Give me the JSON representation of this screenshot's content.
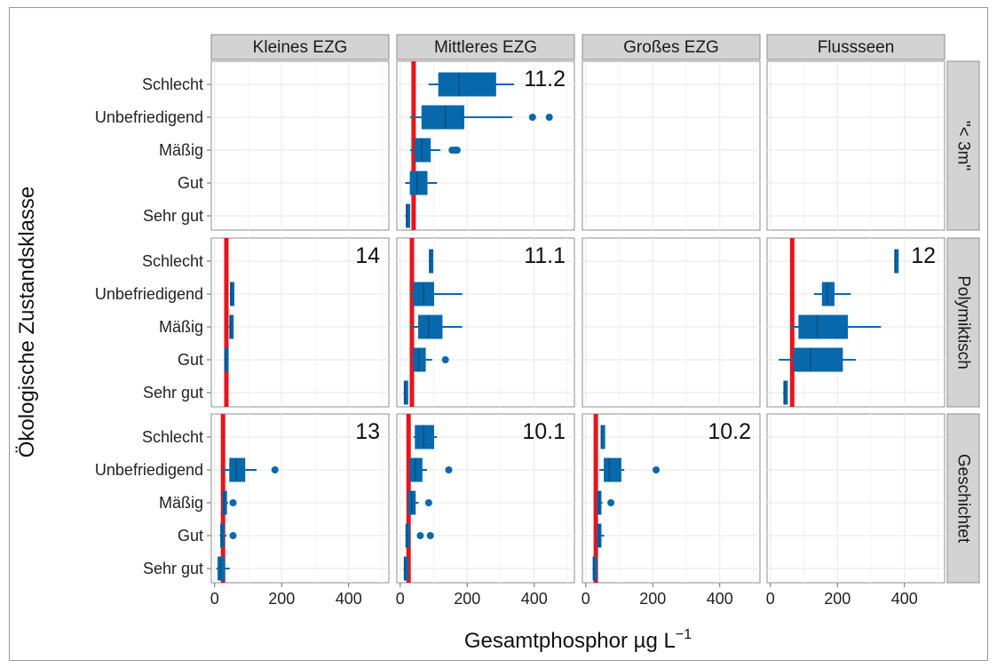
{
  "chart_data": {
    "type": "boxplot",
    "xlabel": "Gesamtphosphor µg L",
    "xlabel_superscript": "−1",
    "ylabel": "Ökologische Zustandsklasse",
    "xlim": [
      -10,
      520
    ],
    "xticks": [
      0,
      200,
      400
    ],
    "categories": [
      "Schlecht",
      "Unbefriedigend",
      "Mäßig",
      "Gut",
      "Sehr gut"
    ],
    "columns": [
      "Kleines EZG",
      "Mittleres EZG",
      "Großes EZG",
      "Flussseen"
    ],
    "rows": [
      "\"< 3m\"",
      "Polymiktisch",
      "Geschichtet"
    ],
    "grid": true,
    "colors": {
      "box": "#0868ac",
      "threshold": "#e8141a",
      "strip": "#d3d3d3",
      "grid": "#ececec"
    },
    "panels": [
      {
        "row": 0,
        "col": 1,
        "label": "11.2",
        "threshold": 40,
        "boxes": {
          "Schlecht": [
            85,
            115,
            175,
            285,
            340,
            []
          ],
          "Unbefriedigend": [
            30,
            65,
            135,
            190,
            335,
            [
              395,
              445
            ]
          ],
          "Mäßig": [
            30,
            45,
            65,
            90,
            120,
            [
              155,
              165,
              170
            ]
          ],
          "Gut": [
            15,
            30,
            50,
            80,
            110,
            []
          ],
          "Sehr gut": [
            15,
            18,
            20,
            25,
            28,
            []
          ]
        }
      },
      {
        "row": 1,
        "col": 0,
        "label": "14",
        "threshold": 35,
        "boxes": {
          "Unbefriedigend": [
            45,
            47,
            50,
            53,
            55,
            []
          ],
          "Mäßig": [
            42,
            45,
            48,
            51,
            54,
            []
          ],
          "Gut": [
            28,
            30,
            33,
            35,
            37,
            []
          ]
        }
      },
      {
        "row": 1,
        "col": 1,
        "label": "11.1",
        "threshold": 35,
        "boxes": {
          "Schlecht": [
            85,
            87,
            90,
            93,
            96,
            []
          ],
          "Unbefriedigend": [
            30,
            40,
            70,
            100,
            185,
            []
          ],
          "Mäßig": [
            30,
            55,
            85,
            125,
            185,
            []
          ],
          "Gut": [
            30,
            40,
            55,
            75,
            95,
            [
              135
            ]
          ],
          "Sehr gut": [
            10,
            12,
            14,
            16,
            18,
            []
          ]
        }
      },
      {
        "row": 1,
        "col": 3,
        "label": "12",
        "threshold": 65,
        "boxes": {
          "Schlecht": [
            370,
            371,
            373,
            375,
            377,
            []
          ],
          "Unbefriedigend": [
            130,
            155,
            170,
            190,
            240,
            []
          ],
          "Mäßig": [
            60,
            85,
            140,
            230,
            330,
            []
          ],
          "Gut": [
            25,
            70,
            120,
            215,
            255,
            []
          ],
          "Sehr gut": [
            38,
            40,
            42,
            44,
            46,
            []
          ]
        }
      },
      {
        "row": 2,
        "col": 0,
        "label": "13",
        "threshold": 25,
        "boxes": {
          "Unbefriedigend": [
            20,
            45,
            65,
            90,
            125,
            [
              180
            ]
          ],
          "Mäßig": [
            20,
            25,
            28,
            32,
            40,
            [
              55
            ]
          ],
          "Gut": [
            15,
            18,
            22,
            26,
            35,
            [
              55
            ]
          ],
          "Sehr gut": [
            5,
            10,
            18,
            30,
            45,
            []
          ]
        }
      },
      {
        "row": 2,
        "col": 1,
        "label": "10.1",
        "threshold": 25,
        "boxes": {
          "Schlecht": [
            40,
            45,
            70,
            100,
            110,
            []
          ],
          "Unbefriedigend": [
            25,
            30,
            45,
            65,
            80,
            [
              145
            ]
          ],
          "Mäßig": [
            20,
            25,
            35,
            45,
            55,
            [
              85
            ]
          ],
          "Gut": [
            15,
            17,
            20,
            25,
            30,
            [
              60,
              90
            ]
          ],
          "Sehr gut": [
            10,
            12,
            14,
            16,
            18,
            []
          ]
        }
      },
      {
        "row": 2,
        "col": 2,
        "label": "10.2",
        "threshold": 30,
        "boxes": {
          "Schlecht": [
            45,
            46,
            47,
            48,
            50,
            []
          ],
          "Unbefriedigend": [
            40,
            55,
            70,
            105,
            115,
            [
              210
            ]
          ],
          "Mäßig": [
            30,
            35,
            40,
            45,
            50,
            [
              75
            ]
          ],
          "Gut": [
            30,
            35,
            40,
            45,
            55,
            []
          ],
          "Sehr gut": [
            20,
            22,
            24,
            26,
            28,
            []
          ]
        }
      }
    ]
  }
}
